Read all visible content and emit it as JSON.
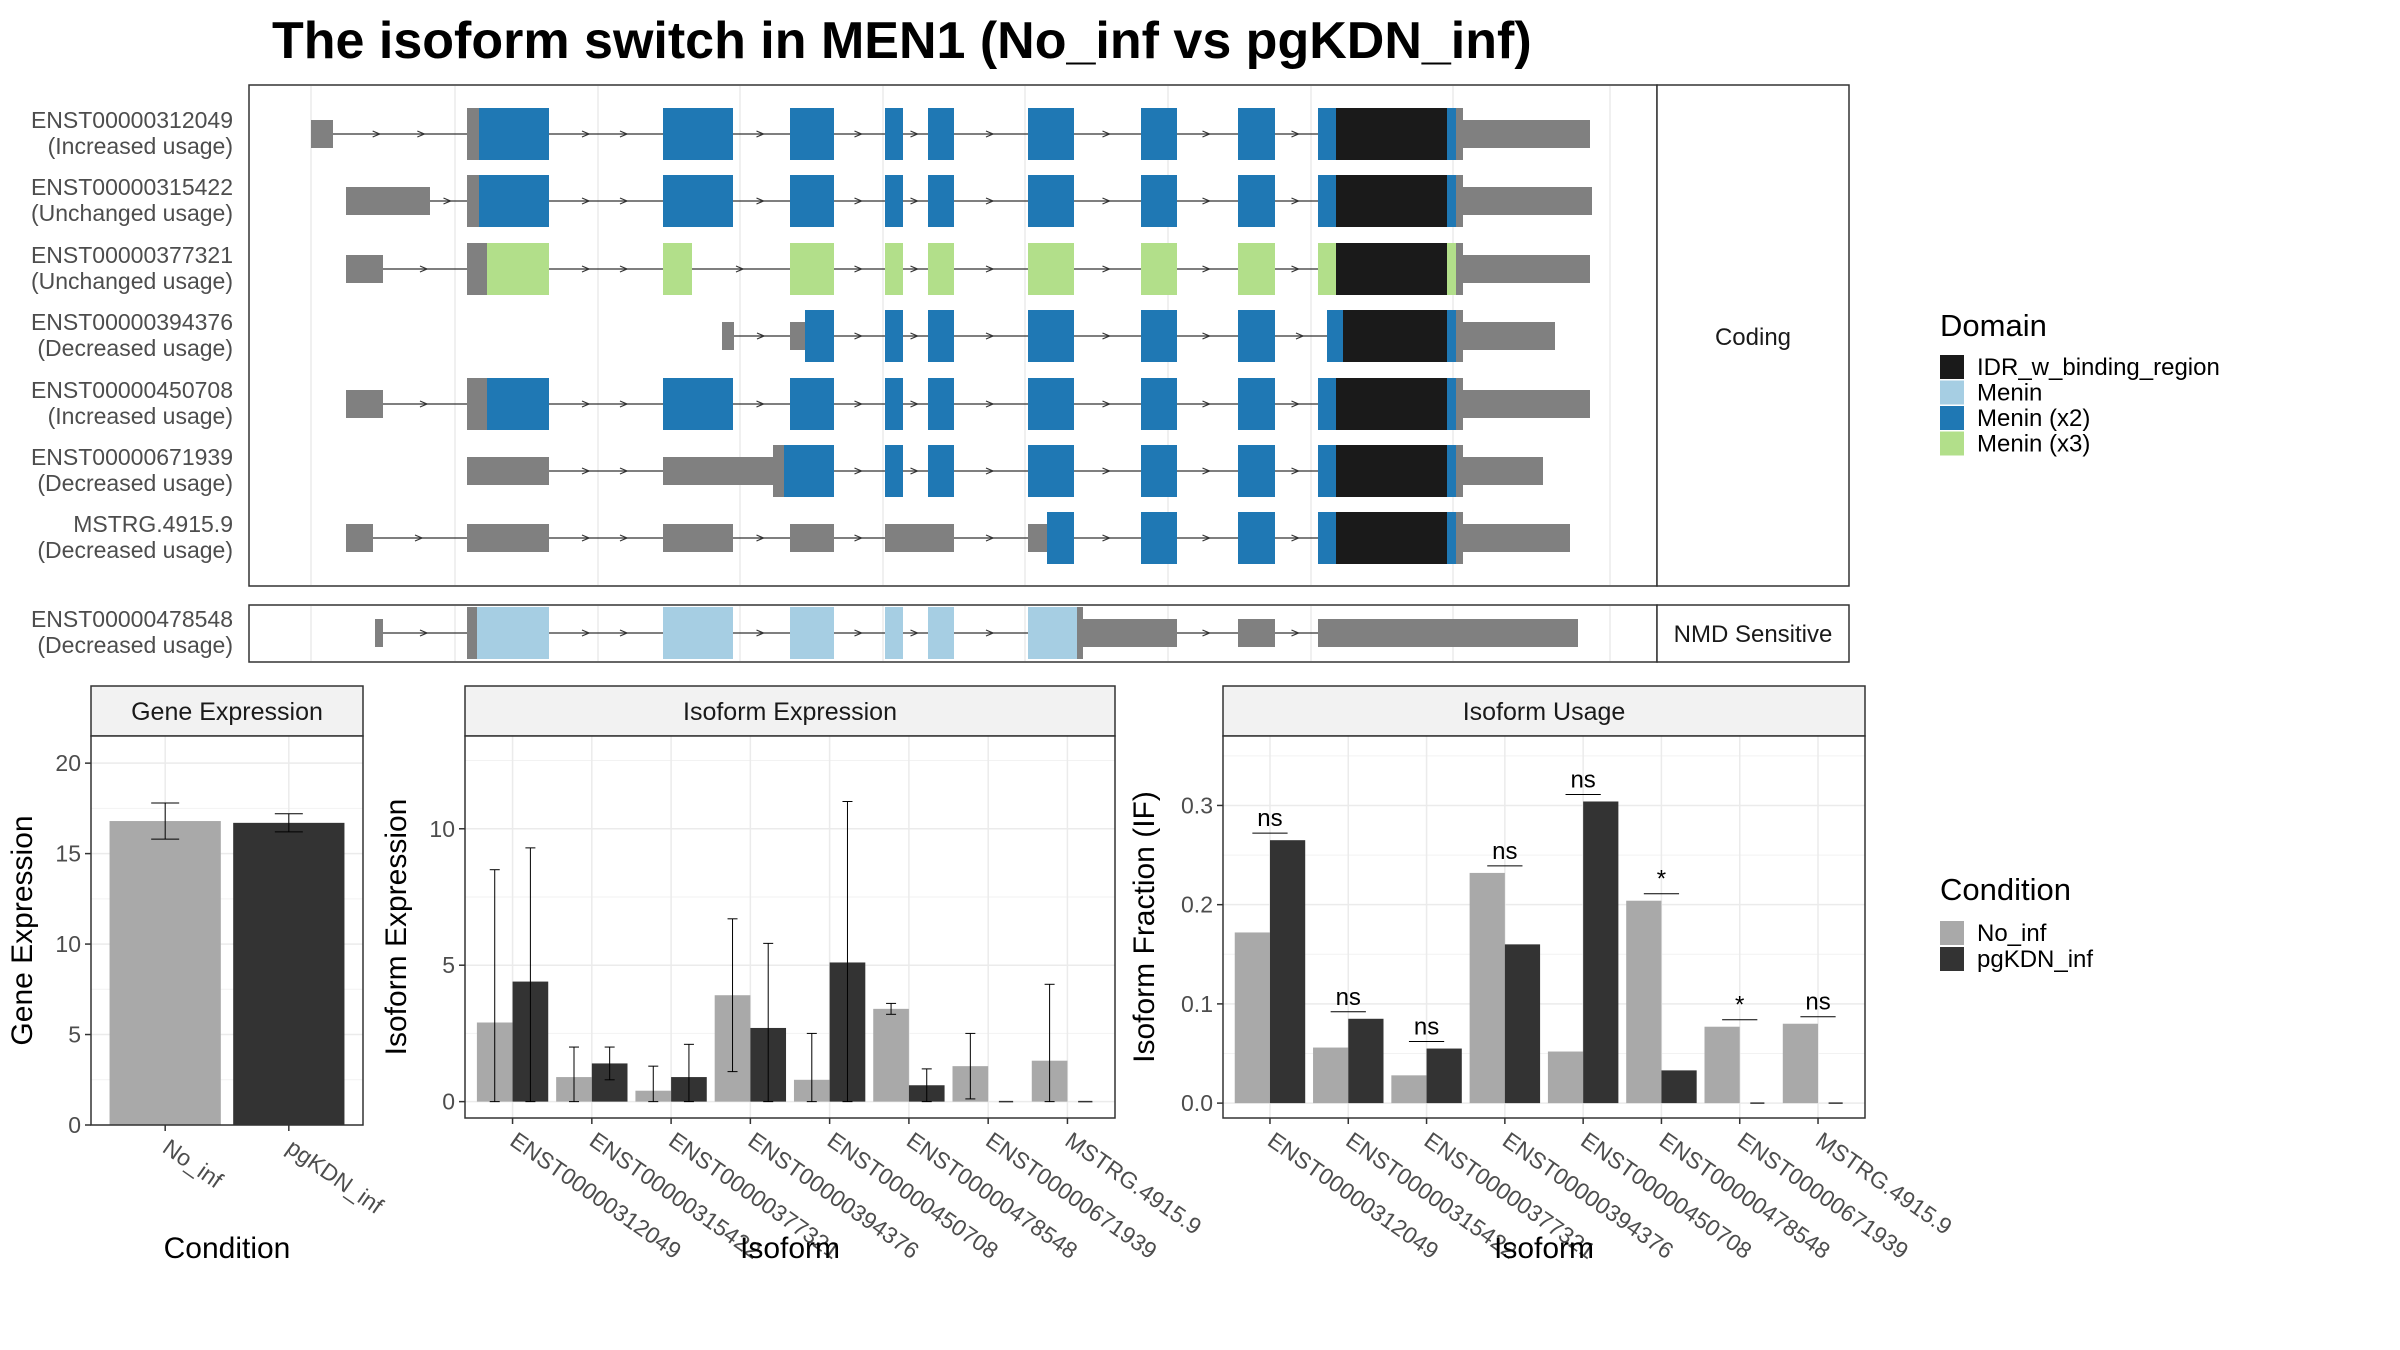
{
  "title": "The isoform switch in MEN1 (No_inf vs pgKDN_inf)",
  "colors": {
    "IDR_w_binding_region": "#1a1a1a",
    "Menin": "#a6cee3",
    "Menin (x2)": "#1f78b4",
    "Menin (x3)": "#b2df8a",
    "non_coding": "#808080",
    "No_inf": "#a9a9a9",
    "pgKDN_inf": "#333333"
  },
  "domain_legend": {
    "title": "Domain",
    "items": [
      {
        "label": "IDR_w_binding_region",
        "color": "#1a1a1a"
      },
      {
        "label": "Menin",
        "color": "#a6cee3"
      },
      {
        "label": "Menin (x2)",
        "color": "#1f78b4"
      },
      {
        "label": "Menin (x3)",
        "color": "#b2df8a"
      }
    ]
  },
  "condition_legend": {
    "title": "Condition",
    "items": [
      {
        "label": "No_inf",
        "color": "#a9a9a9"
      },
      {
        "label": "pgKDN_inf",
        "color": "#333333"
      }
    ]
  },
  "structure": {
    "coding_label": "Coding",
    "nmd_label": "NMD Sensitive",
    "coding_isoforms": [
      {
        "id": "ENST00000312049",
        "usage": "(Increased usage)"
      },
      {
        "id": "ENST00000315422",
        "usage": "(Unchanged usage)"
      },
      {
        "id": "ENST00000377321",
        "usage": "(Unchanged usage)"
      },
      {
        "id": "ENST00000394376",
        "usage": "(Decreased usage)"
      },
      {
        "id": "ENST00000450708",
        "usage": "(Increased usage)"
      },
      {
        "id": "ENST00000671939",
        "usage": "(Decreased usage)"
      },
      {
        "id": "MSTRG.4915.9",
        "usage": "(Decreased usage)"
      }
    ],
    "nmd_isoforms": [
      {
        "id": "ENST00000478548",
        "usage": "(Decreased usage)"
      }
    ]
  },
  "chart_data": [
    {
      "type": "bar",
      "panel_title": "Gene Expression",
      "xlabel": "Condition",
      "ylabel": "Gene Expression",
      "categories": [
        "No_inf",
        "pgKDN_inf"
      ],
      "ylim": [
        0,
        21.5
      ],
      "yticks": [
        0,
        5,
        10,
        15,
        20
      ],
      "series": [
        {
          "values": [
            16.8,
            16.7
          ],
          "errors_low": [
            15.8,
            16.2
          ],
          "errors_high": [
            17.8,
            17.2
          ]
        }
      ]
    },
    {
      "type": "bar",
      "panel_title": "Isoform Expression",
      "xlabel": "Isoform",
      "ylabel": "Isoform Expression",
      "categories": [
        "ENST00000312049",
        "ENST00000315422",
        "ENST00000377321",
        "ENST00000394376",
        "ENST00000450708",
        "ENST00000478548",
        "ENST00000671939",
        "MSTRG.4915.9"
      ],
      "ylim": [
        -0.6,
        13.4
      ],
      "yticks": [
        0,
        5,
        10
      ],
      "series": [
        {
          "name": "No_inf",
          "values": [
            2.9,
            0.9,
            0.4,
            3.9,
            0.8,
            3.4,
            1.3,
            1.5
          ],
          "errors_low": [
            0,
            0,
            0,
            1.1,
            0,
            3.2,
            0.1,
            0
          ],
          "errors_high": [
            8.5,
            2.0,
            1.3,
            6.7,
            2.5,
            3.6,
            2.5,
            4.3
          ]
        },
        {
          "name": "pgKDN_inf",
          "values": [
            4.4,
            1.4,
            0.9,
            2.7,
            5.1,
            0.6,
            0.0,
            0.0
          ],
          "errors_low": [
            0,
            0.8,
            0,
            0,
            0,
            0,
            0,
            0
          ],
          "errors_high": [
            9.3,
            2.0,
            2.1,
            5.8,
            11.0,
            1.2,
            0,
            0
          ]
        }
      ]
    },
    {
      "type": "bar",
      "panel_title": "Isoform Usage",
      "xlabel": "Isoform",
      "ylabel": "Isoform Fraction (IF)",
      "categories": [
        "ENST00000312049",
        "ENST00000315422",
        "ENST00000377321",
        "ENST00000394376",
        "ENST00000450708",
        "ENST00000478548",
        "ENST00000671939",
        "MSTRG.4915.9"
      ],
      "ylim": [
        -0.015,
        0.37
      ],
      "yticks": [
        0.0,
        0.1,
        0.2,
        0.3
      ],
      "series": [
        {
          "name": "No_inf",
          "values": [
            0.172,
            0.056,
            0.028,
            0.232,
            0.052,
            0.204,
            0.077,
            0.08
          ]
        },
        {
          "name": "pgKDN_inf",
          "values": [
            0.265,
            0.085,
            0.055,
            0.16,
            0.304,
            0.033,
            0.0,
            0.0
          ]
        }
      ],
      "significance": [
        "ns",
        "ns",
        "ns",
        "ns",
        "ns",
        "*",
        "*",
        "ns"
      ]
    }
  ]
}
